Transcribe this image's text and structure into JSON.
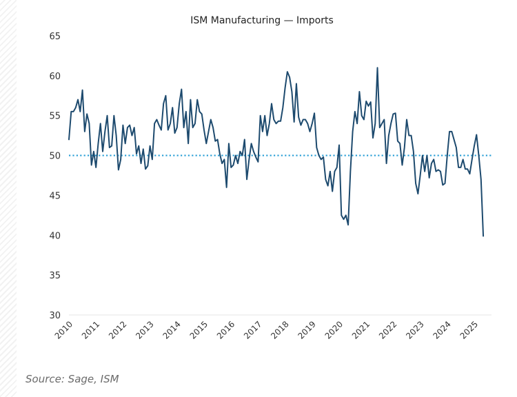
{
  "chart_data": {
    "type": "line",
    "title": "ISM Manufacturing — Imports",
    "xlabel": "",
    "ylabel": "",
    "ylim": [
      30,
      65
    ],
    "yticks": [
      30,
      35,
      40,
      45,
      50,
      55,
      60,
      65
    ],
    "xticks": [
      "2010",
      "2011",
      "2012",
      "2013",
      "2014",
      "2015",
      "2016",
      "2017",
      "2018",
      "2019",
      "2020",
      "2021",
      "2022",
      "2023",
      "2024",
      "2025"
    ],
    "x_start": "2010-01",
    "frequency": "monthly",
    "grid": false,
    "reference_line": {
      "value": 50,
      "style": "dotted",
      "color": "#2a9fd6"
    },
    "series": [
      {
        "name": "ISM Manufacturing Imports",
        "color": "#1d4a6e",
        "values": [
          52.0,
          55.5,
          55.5,
          56.0,
          57.0,
          55.5,
          58.2,
          53.0,
          55.2,
          54.0,
          48.8,
          50.5,
          48.5,
          51.5,
          54.0,
          50.5,
          53.0,
          55.0,
          51.0,
          51.2,
          55.0,
          52.5,
          48.2,
          49.5,
          53.8,
          51.5,
          53.5,
          53.8,
          52.5,
          53.5,
          50.2,
          51.2,
          49.0,
          50.8,
          48.3,
          48.7,
          51.2,
          49.5,
          54.0,
          54.5,
          53.8,
          53.2,
          56.5,
          57.5,
          53.2,
          54.0,
          56.0,
          52.8,
          53.5,
          56.5,
          58.3,
          53.5,
          55.5,
          51.5,
          57.0,
          53.5,
          54.0,
          57.0,
          55.5,
          55.2,
          53.2,
          51.5,
          53.0,
          54.5,
          53.5,
          51.8,
          52.0,
          50.2,
          49.0,
          49.5,
          46.0,
          51.5,
          48.5,
          48.8,
          50.0,
          49.0,
          50.5,
          50.0,
          52.0,
          47.0,
          49.5,
          51.5,
          50.5,
          49.8,
          49.2,
          55.0,
          53.0,
          55.0,
          52.5,
          54.0,
          56.5,
          54.5,
          54.0,
          54.3,
          54.3,
          56.0,
          58.5,
          60.5,
          59.8,
          58.0,
          54.2,
          59.0,
          54.8,
          53.8,
          54.5,
          54.5,
          54.0,
          53.0,
          54.0,
          55.3,
          51.0,
          50.0,
          49.5,
          49.8,
          47.0,
          46.2,
          48.0,
          45.5,
          48.0,
          48.5,
          51.3,
          42.5,
          42.0,
          42.5,
          41.3,
          48.0,
          53.0,
          55.5,
          54.0,
          58.0,
          55.0,
          54.5,
          56.8,
          56.2,
          56.7,
          52.2,
          54.0,
          61.0,
          53.5,
          54.0,
          54.5,
          49.0,
          52.5,
          54.0,
          55.2,
          55.3,
          51.8,
          51.5,
          48.8,
          51.0,
          54.5,
          52.5,
          52.5,
          50.5,
          46.5,
          45.2,
          47.5,
          50.0,
          48.0,
          50.0,
          47.2,
          49.0,
          49.5,
          48.0,
          48.2,
          48.0,
          46.3,
          46.5,
          50.0,
          53.0,
          53.0,
          52.0,
          51.0,
          48.5,
          48.5,
          49.5,
          48.3,
          48.3,
          47.7,
          49.5,
          51.2,
          52.6,
          50.0,
          47.0,
          39.9
        ]
      }
    ]
  },
  "source": "Source: Sage, ISM"
}
